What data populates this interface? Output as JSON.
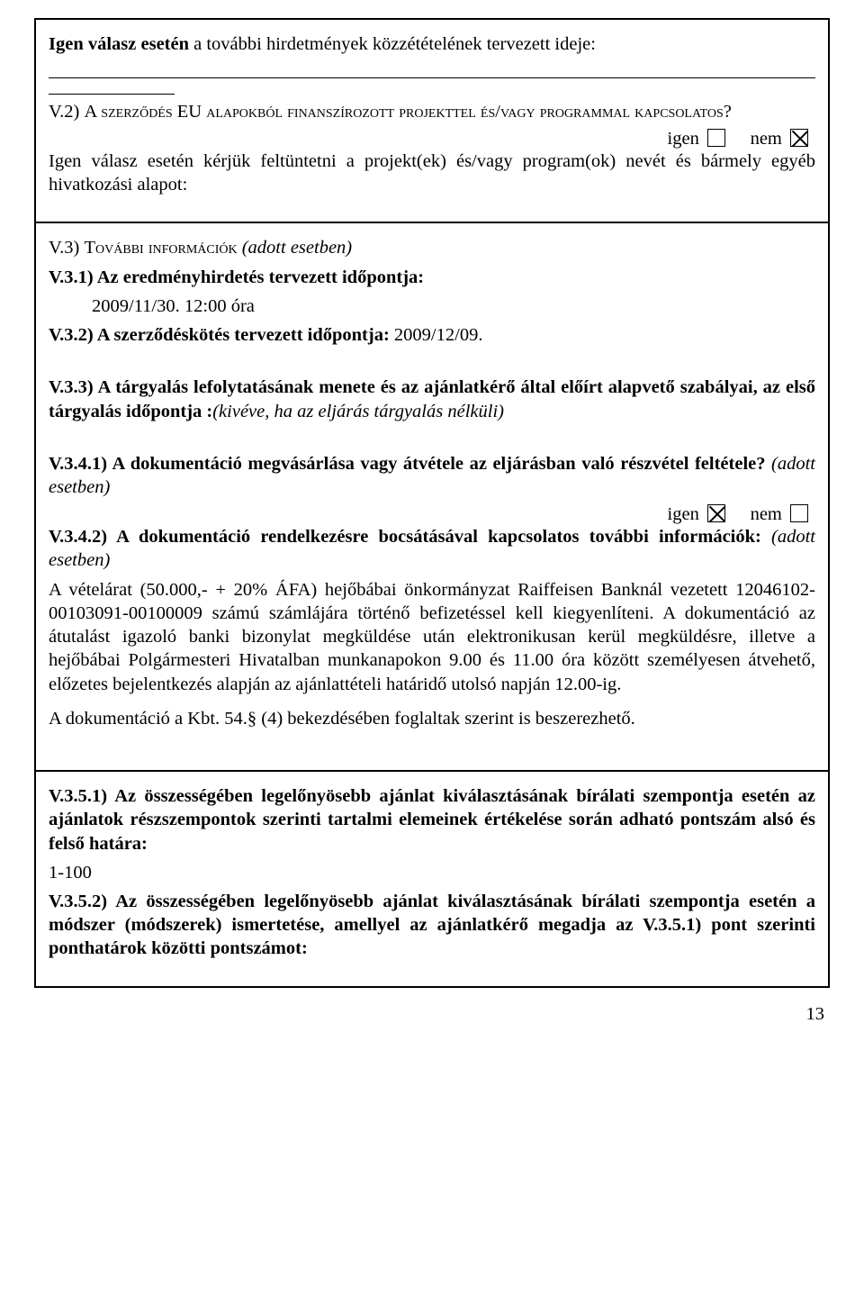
{
  "colors": {
    "text": "#000000",
    "border": "#000000",
    "background": "#ffffff"
  },
  "typography": {
    "font_family": "Times New Roman",
    "body_size_pt": 15,
    "line_height": 1.28
  },
  "box1": {
    "line1_bold": "Igen válasz esetén",
    "line1_rest": " a további hirdetmények közzétételének tervezett ideje:",
    "heading_num": "V.2) ",
    "heading_caps": "A szerződés EU alapokból finanszírozott projekttel és/vagy programmal kapcsolatos?",
    "igen": "igen",
    "nem": "nem",
    "igen_checked": false,
    "nem_checked": true,
    "followup": "Igen válasz esetén kérjük feltüntetni a projekt(ek) és/vagy program(ok) nevét és bármely egyéb hivatkozási alapot:"
  },
  "box2": {
    "h3_num": "V.3) ",
    "h3_caps": "További információk",
    "h3_paren": " (adott esetben)",
    "h31": "V.3.1) Az eredményhirdetés tervezett időpontja:",
    "h31_val": "2009/11/30. 12:00 óra",
    "h32_label": "V.3.2) A szerződéskötés tervezett időpontja:",
    "h32_val": " 2009/12/09.",
    "h33": "V.3.3) A tárgyalás lefolytatásának menete és az ajánlatkérő által előírt alapvető szabályai, az első tárgyalás időpontja :",
    "h33_italic": "(kivéve, ha az eljárás tárgyalás nélküli)",
    "h341": "V.3.4.1) A dokumentáció megvásárlása vagy átvétele az eljárásban való részvétel feltétele?",
    "h341_paren": " (adott esetben)",
    "h341_igen": "igen",
    "h341_nem": "nem",
    "h341_igen_checked": true,
    "h341_nem_checked": false,
    "h342": "V.3.4.2) A dokumentáció rendelkezésre bocsátásával kapcsolatos további információk:",
    "h342_paren": " (adott esetben)",
    "p1": "A vételárat (50.000,- + 20% ÁFA) hejőbábai önkormányzat Raiffeisen Banknál vezetett 12046102-00103091-00100009 számú számlájára történő befizetéssel kell kiegyenlíteni. A dokumentáció az átutalást igazoló banki bizonylat megküldése után elektronikusan kerül megküldésre, illetve a hejőbábai Polgármesteri Hivatalban munkanapokon 9.00 és 11.00 óra között személyesen átvehető, előzetes bejelentkezés alapján az ajánlattételi határidő utolsó napján 12.00-ig.",
    "p2": "A dokumentáció a Kbt. 54.§ (4) bekezdésében foglaltak szerint is beszerezhető."
  },
  "box3": {
    "h351": "V.3.5.1) Az összességében legelőnyösebb ajánlat kiválasztásának bírálati szempontja esetén az ajánlatok részszempontok szerinti tartalmi elemeinek értékelése során adható pontszám alsó és felső határa:",
    "range": "1-100",
    "h352": "V.3.5.2) Az összességében legelőnyösebb ajánlat kiválasztásának bírálati szempontja esetén a módszer (módszerek) ismertetése, amellyel az ajánlatkérő megadja az V.3.5.1) pont szerinti ponthatárok közötti pontszámot:"
  },
  "page_number": "13"
}
